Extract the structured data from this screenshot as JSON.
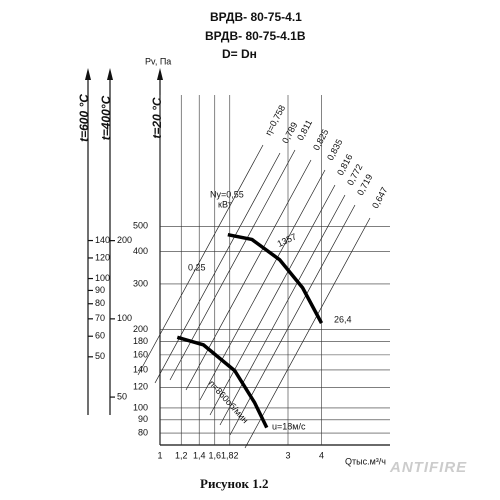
{
  "chart_data": {
    "type": "line",
    "title": "ВРДВ- 80-75-4.1",
    "subtitle": "ВРДВ- 80-75-4.1В",
    "subtitle2": "D= Dн",
    "caption": "Рисунок 1.2",
    "watermark": "ANTIFIRE",
    "x_label": "Qтыс.м³/ч",
    "y_label": "Pv, Па",
    "y_axis_title": "t=20 °C",
    "log_x": true,
    "log_y": true,
    "grid": true,
    "xlim": [
      1,
      7.2
    ],
    "ylim": [
      72,
      1600
    ],
    "xticks": [
      1,
      {
        "value": 1.2,
        "label": "1,2"
      },
      {
        "value": 1.4,
        "label": "1,4"
      },
      {
        "value": 1.6,
        "label": "1,6"
      },
      {
        "value": 1.82,
        "label": "1,82"
      },
      3,
      4
    ],
    "yticks": [
      80,
      90,
      100,
      120,
      140,
      160,
      180,
      200,
      300,
      400,
      500
    ],
    "extra_axes": [
      {
        "title": "t=600 °C",
        "lim": [
          22.9,
          508
        ],
        "ticks": [
          50,
          60,
          70,
          80,
          90,
          100,
          120,
          140
        ]
      },
      {
        "title": "t=400°C",
        "lim": [
          32.7,
          727
        ],
        "ticks": [
          50,
          100,
          200
        ]
      }
    ],
    "series": [
      {
        "label": "1357",
        "color": "#000000",
        "x": [
          1.79,
          2.2,
          2.79,
          3.4,
          4.0
        ],
        "values": [
          464,
          445,
          372,
          290,
          212
        ]
      },
      {
        "label": "n=860об/мин",
        "color": "#000000",
        "x": [
          1.16,
          1.45,
          1.9,
          2.25,
          2.5
        ],
        "values": [
          187,
          175,
          139,
          105,
          84
        ]
      }
    ],
    "annotations": [
      "Ny=0,55",
      "кВт",
      "0,25",
      "26,4",
      "u=18м/с"
    ],
    "efficiency_labels": [
      "η=0,758",
      "0,789",
      "0,811",
      "0,825",
      "0,835",
      "0,816",
      "0,772",
      "0,719",
      "0,647"
    ]
  }
}
